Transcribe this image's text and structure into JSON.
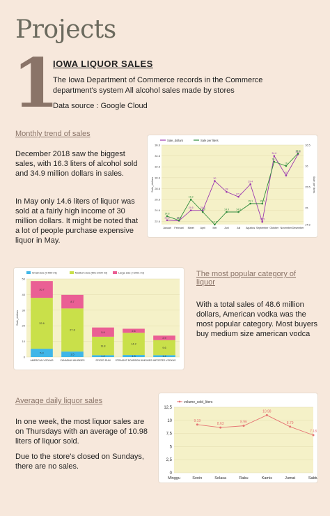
{
  "page": {
    "title": "Projects",
    "number": "1",
    "project_title": "IOWA LIQUOR SALES",
    "description": "The Iowa Department of Commerce records in the Commerce department's system All alcohol sales made by stores",
    "source": "Data source : Google Cloud"
  },
  "sections": {
    "monthly": {
      "heading": "Monthly trend of sales",
      "para1": "December 2018 saw the biggest sales, with 16.3 liters of alcohol sold and 34.9 million dollars in sales.",
      "para2": "In May only 14.6 liters of liquor was sold at a fairly high income of 30 million dollars. It might be noted that a lot of people purchase expensive liquor in May."
    },
    "category": {
      "heading": "The most popular category of liquor",
      "para": "With a total sales of 48.6 million dollars, American vodka was the most popular category. Most buyers buy medium size american vodca"
    },
    "daily": {
      "heading": "Average daily liquor sales",
      "para1": "In one week, the most liquor sales are on Thursdays with an average of 10.98 liters of liquor sold.",
      "para2": "Due to the store's closed on Sundays, there are no sales."
    }
  },
  "colors": {
    "background": "#f7e8dc",
    "accent": "#8a7468",
    "sale_dollars": "#9c3ab0",
    "sale_liters": "#2e8b3c",
    "small": "#3fb6e8",
    "medium": "#c9e04a",
    "large": "#ea5f94",
    "volume": "#e57373",
    "plot_bg": "#f5f1c8"
  },
  "chart_data": [
    {
      "type": "line",
      "categories": [
        "Januari",
        "Februari",
        "Maret",
        "April",
        "Mei",
        "Juni",
        "Juli",
        "Agustus",
        "September",
        "Oktober",
        "November",
        "Desember"
      ],
      "series": [
        {
          "name": "Sale_dollars",
          "values": [
            22.8,
            22.7,
            24.6,
            24.6,
            30,
            28,
            27.1,
            29.4,
            22.5,
            34.6,
            31,
            34.9
          ]
        },
        {
          "name": "Sale per liters",
          "values": [
            14.8,
            14.7,
            15.2,
            14.9,
            14.6,
            14.9,
            14.9,
            15.1,
            15.1,
            16.1,
            16,
            16.3
          ]
        }
      ],
      "y_left": {
        "label": "Sale_dollars",
        "ticks": [
          "22.6",
          "24.6",
          "26.6",
          "28.6",
          "30.6",
          "32.6",
          "34.6",
          "36.6"
        ],
        "range": [
          22,
          36.6
        ]
      },
      "y_right": {
        "label": "Sale per liters",
        "ticks": [
          "14.6",
          "15",
          "15.5",
          "16",
          "16.5"
        ],
        "range": [
          14.6,
          16.5
        ]
      },
      "legend": "top-left",
      "grid": true
    },
    {
      "type": "bar",
      "stacked": true,
      "categories": [
        "AMERICAN VODKAS",
        "CANADIAN WHISKIES",
        "SPICED RUM",
        "STRAIGHT BOURBON WHISKIES",
        "IMPORTED VODKAS"
      ],
      "series": [
        {
          "name": "Small size (0-500 ml)",
          "values": [
            5.3,
            3.5,
            1.2,
            1.3,
            1.2
          ]
        },
        {
          "name": "Medium size (501-1000 ml)",
          "values": [
            32.6,
            27.6,
            11.8,
            14.2,
            9.6
          ]
        },
        {
          "name": "Large size (>1001 ml)",
          "values": [
            10.7,
            8.7,
            5.9,
            2.6,
            2.9
          ]
        }
      ],
      "y_ticks": [
        "0",
        "10",
        "20",
        "30",
        "40",
        "50"
      ],
      "ylim": [
        0,
        50
      ],
      "ylabel": "Sale_dollars",
      "legend": "top-left",
      "grid": true
    },
    {
      "type": "line",
      "categories": [
        "Minggu",
        "Senin",
        "Selasa",
        "Rabu",
        "Kamis",
        "Jumat",
        "Sabtu"
      ],
      "series": [
        {
          "name": "volume_sold_liters",
          "values": [
            null,
            9.19,
            8.63,
            8.96,
            10.98,
            8.79,
            7.18
          ]
        }
      ],
      "y_ticks": [
        "0",
        "2,5",
        "5",
        "7,5",
        "10",
        "12,5"
      ],
      "ylim": [
        0,
        12.5
      ],
      "legend": "top-left",
      "grid": true
    }
  ]
}
